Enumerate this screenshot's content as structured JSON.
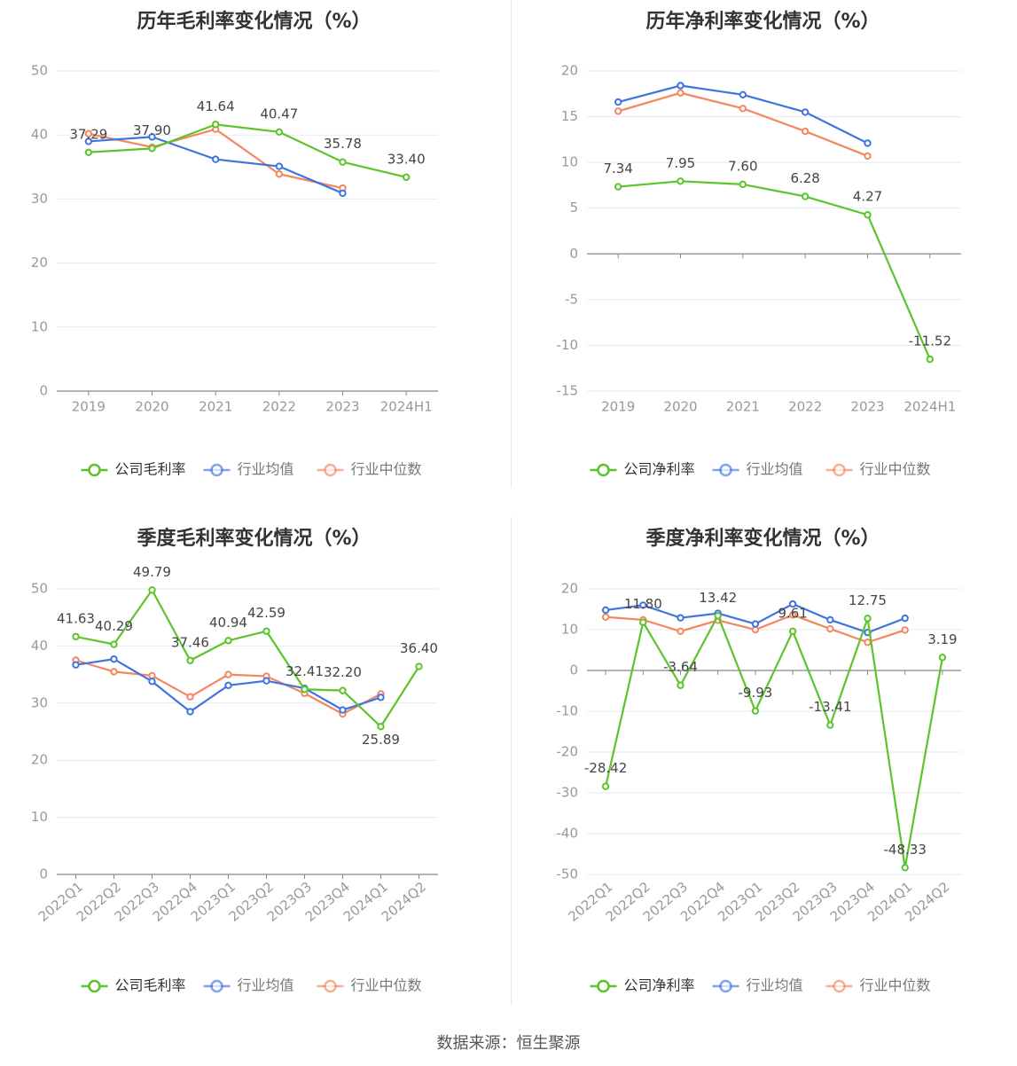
{
  "source": "数据来源：恒生聚源",
  "colors": {
    "company": "#5cc42b",
    "industry_avg": "#3f74e0",
    "industry_median": "#f4875d",
    "axis": "#999999",
    "grid": "#e6e9f0",
    "zero_line": "#888888",
    "label": "#444444",
    "title": "#333333"
  },
  "legend_icon": "circle-line-icon",
  "chart_data": [
    {
      "type": "line",
      "title": "历年毛利率变化情况（%）",
      "categories": [
        "2019",
        "2020",
        "2021",
        "2022",
        "2023",
        "2024H1"
      ],
      "ylim": [
        0,
        50
      ],
      "yticks": [
        0,
        10,
        20,
        30,
        40,
        50
      ],
      "grid": true,
      "legend_position": "bottom-center",
      "rotate_labels": false,
      "series": [
        {
          "name": "公司毛利率",
          "role": "company",
          "values": [
            37.29,
            37.9,
            41.64,
            40.47,
            35.78,
            33.4
          ],
          "labels": [
            "37.29",
            "37.90",
            "41.64",
            "40.47",
            "35.78",
            "33.40"
          ]
        },
        {
          "name": "行业均值",
          "role": "industry_avg",
          "values": [
            39.0,
            39.7,
            36.2,
            35.1,
            30.9,
            null
          ]
        },
        {
          "name": "行业中位数",
          "role": "industry_median",
          "values": [
            40.2,
            38.1,
            40.9,
            33.9,
            31.7,
            null
          ]
        }
      ]
    },
    {
      "type": "line",
      "title": "历年净利率变化情况（%）",
      "categories": [
        "2019",
        "2020",
        "2021",
        "2022",
        "2023",
        "2024H1"
      ],
      "ylim": [
        -15,
        20
      ],
      "yticks": [
        -15,
        -10,
        -5,
        0,
        5,
        10,
        15,
        20
      ],
      "grid": true,
      "legend_position": "bottom-center",
      "rotate_labels": false,
      "series": [
        {
          "name": "公司净利率",
          "role": "company",
          "values": [
            7.34,
            7.95,
            7.6,
            6.28,
            4.27,
            -11.52
          ],
          "labels": [
            "7.34",
            "7.95",
            "7.60",
            "6.28",
            "4.27",
            "-11.52"
          ]
        },
        {
          "name": "行业均值",
          "role": "industry_avg",
          "values": [
            16.6,
            18.4,
            17.4,
            15.5,
            12.1,
            null
          ]
        },
        {
          "name": "行业中位数",
          "role": "industry_median",
          "values": [
            15.6,
            17.6,
            15.9,
            13.4,
            10.7,
            null
          ]
        }
      ]
    },
    {
      "type": "line",
      "title": "季度毛利率变化情况（%）",
      "categories": [
        "2022Q1",
        "2022Q2",
        "2022Q3",
        "2022Q4",
        "2023Q1",
        "2023Q2",
        "2023Q3",
        "2023Q4",
        "2024Q1",
        "2024Q2"
      ],
      "ylim": [
        0,
        50
      ],
      "yticks": [
        0,
        10,
        20,
        30,
        40,
        50
      ],
      "grid": true,
      "legend_position": "bottom-center",
      "rotate_labels": true,
      "series": [
        {
          "name": "公司毛利率",
          "role": "company",
          "values": [
            41.63,
            40.29,
            49.79,
            37.46,
            40.94,
            42.59,
            32.41,
            32.2,
            25.89,
            36.4
          ],
          "labels": [
            "41.63",
            "40.29",
            "49.79",
            "37.46",
            "40.94",
            "42.59",
            "32.41",
            "32.20",
            "25.89",
            "36.40"
          ]
        },
        {
          "name": "行业均值",
          "role": "industry_avg",
          "values": [
            36.7,
            37.7,
            33.8,
            28.5,
            33.1,
            33.9,
            32.6,
            28.8,
            31.0,
            null
          ]
        },
        {
          "name": "行业中位数",
          "role": "industry_median",
          "values": [
            37.5,
            35.5,
            34.8,
            31.1,
            35.0,
            34.7,
            31.7,
            28.1,
            31.6,
            null
          ]
        }
      ]
    },
    {
      "type": "line",
      "title": "季度净利率变化情况（%）",
      "categories": [
        "2022Q1",
        "2022Q2",
        "2022Q3",
        "2022Q4",
        "2023Q1",
        "2023Q2",
        "2023Q3",
        "2023Q4",
        "2024Q1",
        "2024Q2"
      ],
      "ylim": [
        -50,
        20
      ],
      "yticks": [
        -50,
        -40,
        -30,
        -20,
        -10,
        0,
        10,
        20
      ],
      "grid": true,
      "legend_position": "bottom-center",
      "rotate_labels": true,
      "series": [
        {
          "name": "公司净利率",
          "role": "company",
          "values": [
            -28.42,
            11.8,
            -3.64,
            13.42,
            -9.93,
            9.61,
            -13.41,
            12.75,
            -48.33,
            3.19
          ],
          "labels": [
            "-28.42",
            "11.80",
            "-3.64",
            "13.42",
            "-9.93",
            "9.61",
            "-13.41",
            "12.75",
            "-48.33",
            "3.19"
          ]
        },
        {
          "name": "行业均值",
          "role": "industry_avg",
          "values": [
            14.8,
            16.0,
            12.9,
            14.0,
            11.4,
            16.3,
            12.4,
            9.3,
            12.8,
            null
          ]
        },
        {
          "name": "行业中位数",
          "role": "industry_median",
          "values": [
            13.1,
            12.4,
            9.6,
            12.3,
            10.0,
            13.6,
            10.2,
            6.9,
            9.9,
            null
          ]
        }
      ]
    }
  ]
}
